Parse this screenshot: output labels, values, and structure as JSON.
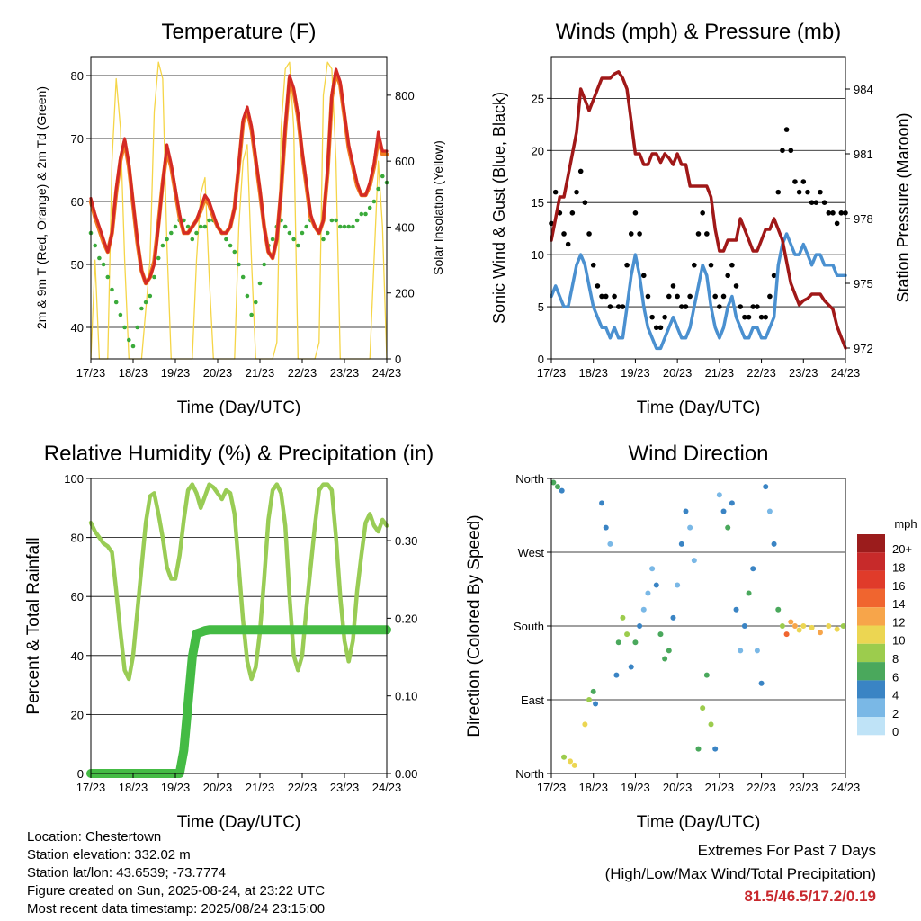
{
  "x_ticks": [
    "17/23",
    "18/23",
    "19/23",
    "20/23",
    "21/23",
    "22/23",
    "23/23",
    "24/23"
  ],
  "xlabel": "Time (Day/UTC)",
  "colors": {
    "temp_red": "#d42a25",
    "temp_orange": "#f07a20",
    "dewpoint_green": "#3aaa3a",
    "insolation": "#f5d547",
    "wind_blue": "#4a90d0",
    "gust_black": "#000000",
    "pressure_maroon": "#a01818",
    "rh_green": "#99cc55",
    "rain_green": "#44bb44",
    "extremes_red": "#c8282d"
  },
  "footer": {
    "location": "Location: Chestertown",
    "elevation": "Station elevation: 332.02 m",
    "latlon": "Station lat/lon: 43.6539; -73.7774",
    "created": "Figure created on Sun, 2025-08-24, at 23:22 UTC",
    "recent": "Most recent data timestamp: 2025/08/24 23:15:00"
  },
  "extremes": {
    "title": "Extremes For Past 7 Days",
    "subtitle": "(High/Low/Max Wind/Total Precipitation)",
    "values": "81.5/46.5/17.2/0.19"
  },
  "chart_data": [
    {
      "type": "line",
      "title": "Temperature (F)",
      "xlabel": "Time (Day/UTC)",
      "ylabel": "2m & 9m T (Red, Orange) & 2m Td (Green)",
      "ylabel_right": "Solar Insolation (Yellow)",
      "ylim": [
        35,
        83
      ],
      "ylim_right": [
        0,
        917
      ],
      "yticks": [
        40,
        50,
        60,
        70,
        80
      ],
      "yticks_right": [
        0,
        200,
        400,
        600,
        800
      ],
      "x": [
        0,
        0.1,
        0.2,
        0.3,
        0.4,
        0.5,
        0.6,
        0.7,
        0.8,
        0.9,
        1,
        1.1,
        1.2,
        1.3,
        1.4,
        1.5,
        1.6,
        1.7,
        1.8,
        1.9,
        2,
        2.1,
        2.2,
        2.3,
        2.4,
        2.5,
        2.6,
        2.7,
        2.8,
        2.9,
        3,
        3.1,
        3.2,
        3.3,
        3.4,
        3.5,
        3.6,
        3.7,
        3.8,
        3.9,
        4,
        4.1,
        4.2,
        4.3,
        4.4,
        4.5,
        4.6,
        4.7,
        4.8,
        4.9,
        5,
        5.1,
        5.2,
        5.3,
        5.4,
        5.5,
        5.6,
        5.7,
        5.8,
        5.9,
        6,
        6.1,
        6.2,
        6.3,
        6.4,
        6.5,
        6.6,
        6.7,
        6.8,
        6.9,
        7
      ],
      "series": [
        {
          "values": [
            60.5,
            58,
            56,
            54,
            52,
            55,
            62,
            67,
            70,
            66,
            60,
            54,
            49,
            47,
            48,
            50,
            56,
            63,
            69,
            66,
            62,
            58,
            55,
            55,
            56,
            57,
            59,
            61,
            60,
            58,
            56,
            55,
            55,
            56,
            59,
            66,
            73,
            75,
            72,
            67,
            62,
            56,
            52,
            51,
            54,
            62,
            72,
            80,
            78,
            74,
            68,
            63,
            58,
            56,
            55,
            57,
            65,
            77,
            81,
            79,
            74,
            69,
            66,
            63,
            61,
            61,
            63,
            66,
            71,
            68,
            68
          ]
        },
        {
          "values": [
            60,
            57.5,
            55.5,
            53.5,
            52,
            55,
            61.5,
            66.5,
            69.5,
            65.5,
            59.5,
            53.5,
            49,
            47,
            48,
            50.5,
            56.5,
            63,
            68,
            65.5,
            61.5,
            57.5,
            55,
            55,
            56,
            57,
            58.5,
            60.5,
            59.5,
            57.5,
            56,
            55,
            55,
            56,
            59,
            65.5,
            72.5,
            74.5,
            71.5,
            66.5,
            61.5,
            56,
            52,
            51,
            54,
            61.5,
            71.5,
            79.5,
            77.5,
            73.5,
            67.5,
            62.5,
            57.5,
            56,
            55,
            57,
            64.5,
            76.5,
            80.5,
            78.5,
            73.5,
            68.5,
            65.5,
            62.5,
            61,
            61,
            62.5,
            65.5,
            70,
            67.5,
            67.5
          ]
        },
        {
          "values": [
            55,
            53,
            51,
            50,
            48,
            46,
            44,
            42,
            40,
            38,
            37,
            40,
            43,
            44,
            45,
            48,
            51,
            53,
            54,
            55,
            56,
            57,
            57,
            56,
            54,
            55,
            56,
            56,
            57,
            57,
            56,
            55,
            54,
            53,
            52,
            50,
            48,
            45,
            42,
            44,
            47,
            50,
            53,
            54,
            56,
            57,
            56,
            55,
            54,
            53,
            55,
            56,
            57,
            56,
            55,
            54,
            55,
            57,
            57,
            56,
            56,
            56,
            56,
            57,
            58,
            58,
            59,
            60,
            62,
            64,
            63
          ]
        },
        {
          "values": [
            0,
            300,
            0,
            0,
            0,
            600,
            850,
            700,
            300,
            0,
            0,
            0,
            0,
            150,
            300,
            750,
            900,
            850,
            350,
            0,
            0,
            0,
            0,
            0,
            0,
            300,
            500,
            550,
            250,
            0,
            0,
            0,
            0,
            0,
            0,
            400,
            600,
            650,
            300,
            0,
            0,
            0,
            0,
            0,
            50,
            700,
            880,
            900,
            700,
            0,
            0,
            0,
            0,
            0,
            50,
            800,
            900,
            880,
            600,
            0,
            0,
            0,
            0,
            0,
            0,
            0,
            0,
            300,
            600,
            400,
            0
          ]
        }
      ]
    },
    {
      "type": "line",
      "title": "Winds (mph) & Pressure (mb)",
      "xlabel": "Time (Day/UTC)",
      "ylabel": "Sonic Wind & Gust (Blue, Black)",
      "ylabel_right": "Station Pressure (Maroon)",
      "ylim": [
        0,
        29
      ],
      "ylim_right": [
        971.5,
        985.5
      ],
      "yticks": [
        0,
        5,
        10,
        15,
        20,
        25
      ],
      "yticks_right": [
        972,
        975,
        978,
        981,
        984
      ],
      "x": [
        0,
        0.1,
        0.2,
        0.3,
        0.4,
        0.5,
        0.6,
        0.7,
        0.8,
        0.9,
        1,
        1.1,
        1.2,
        1.3,
        1.4,
        1.5,
        1.6,
        1.7,
        1.8,
        1.9,
        2,
        2.1,
        2.2,
        2.3,
        2.4,
        2.5,
        2.6,
        2.7,
        2.8,
        2.9,
        3,
        3.1,
        3.2,
        3.3,
        3.4,
        3.5,
        3.6,
        3.7,
        3.8,
        3.9,
        4,
        4.1,
        4.2,
        4.3,
        4.4,
        4.5,
        4.6,
        4.7,
        4.8,
        4.9,
        5,
        5.1,
        5.2,
        5.3,
        5.4,
        5.5,
        5.6,
        5.7,
        5.8,
        5.9,
        6,
        6.1,
        6.2,
        6.3,
        6.4,
        6.5,
        6.6,
        6.7,
        6.8,
        6.9,
        7
      ],
      "series": [
        {
          "values": [
            6,
            7,
            6,
            5,
            5,
            7,
            9,
            10,
            9,
            7,
            5,
            4,
            3,
            3,
            2,
            3,
            2,
            2,
            5,
            8,
            10,
            8,
            5,
            3,
            2,
            1,
            1,
            2,
            3,
            4,
            3,
            2,
            2,
            3,
            5,
            7,
            9,
            8,
            5,
            3,
            2,
            3,
            5,
            6,
            4,
            3,
            2,
            2,
            3,
            3,
            2,
            2,
            3,
            4,
            9,
            11,
            12,
            11,
            10,
            10,
            11,
            10,
            9,
            10,
            10,
            9,
            9,
            9,
            8,
            8,
            8
          ]
        },
        {
          "values": [
            13,
            16,
            14,
            12,
            11,
            14,
            16,
            18,
            15,
            12,
            9,
            7,
            6,
            6,
            5,
            6,
            5,
            5,
            9,
            12,
            14,
            12,
            8,
            6,
            4,
            3,
            3,
            4,
            6,
            7,
            6,
            5,
            5,
            6,
            9,
            12,
            14,
            12,
            9,
            6,
            5,
            6,
            8,
            9,
            7,
            5,
            4,
            4,
            5,
            5,
            4,
            4,
            6,
            8,
            16,
            20,
            22,
            20,
            17,
            16,
            17,
            16,
            15,
            15,
            16,
            15,
            14,
            14,
            13,
            14,
            14
          ]
        },
        {
          "values": [
            977,
            978,
            979,
            979,
            980,
            981,
            982,
            984,
            983.5,
            983,
            983.5,
            984,
            984.5,
            984.5,
            984.5,
            984.7,
            984.8,
            984.5,
            984,
            982.5,
            981,
            981,
            980.5,
            980.5,
            981,
            981,
            980.6,
            981,
            980.8,
            980.5,
            981,
            980.5,
            980.5,
            979.5,
            979.5,
            979.5,
            979.5,
            979.5,
            979,
            977.5,
            976.5,
            976.5,
            977,
            977,
            977,
            978,
            977.5,
            977,
            976.5,
            976.5,
            977,
            977.5,
            977.5,
            978,
            977.5,
            977,
            976,
            975,
            974.5,
            974,
            974.2,
            974.3,
            974.5,
            974.5,
            974.5,
            974.2,
            974,
            973.8,
            973,
            972.5,
            972
          ]
        }
      ]
    },
    {
      "type": "line",
      "title": "Relative Humidity (%) & Precipitation (in)",
      "xlabel": "Time (Day/UTC)",
      "ylabel": "Percent & Total Rainfall",
      "ylim": [
        0,
        100
      ],
      "ylim_right": [
        0,
        0.38
      ],
      "yticks": [
        0,
        20,
        40,
        60,
        80,
        100
      ],
      "yticks_right": [
        "0.00",
        "0.10",
        "0.20",
        "0.30"
      ],
      "x": [
        0,
        0.1,
        0.2,
        0.3,
        0.4,
        0.5,
        0.6,
        0.7,
        0.8,
        0.9,
        1,
        1.1,
        1.2,
        1.3,
        1.4,
        1.5,
        1.6,
        1.7,
        1.8,
        1.9,
        2,
        2.1,
        2.2,
        2.3,
        2.4,
        2.5,
        2.6,
        2.7,
        2.8,
        2.9,
        3,
        3.1,
        3.2,
        3.3,
        3.4,
        3.5,
        3.6,
        3.7,
        3.8,
        3.9,
        4,
        4.1,
        4.2,
        4.3,
        4.4,
        4.5,
        4.6,
        4.7,
        4.8,
        4.9,
        5,
        5.1,
        5.2,
        5.3,
        5.4,
        5.5,
        5.6,
        5.7,
        5.8,
        5.9,
        6,
        6.1,
        6.2,
        6.3,
        6.4,
        6.5,
        6.6,
        6.7,
        6.8,
        6.9,
        7
      ],
      "series": [
        {
          "values": [
            85,
            82,
            80,
            78,
            77,
            75,
            62,
            48,
            35,
            32,
            40,
            55,
            70,
            85,
            94,
            95,
            88,
            80,
            70,
            66,
            66,
            74,
            86,
            96,
            98,
            95,
            90,
            94,
            98,
            97,
            95,
            93,
            96,
            95,
            88,
            70,
            52,
            38,
            32,
            36,
            48,
            66,
            86,
            96,
            98,
            95,
            84,
            60,
            40,
            35,
            40,
            56,
            70,
            84,
            96,
            98,
            98,
            96,
            80,
            60,
            45,
            38,
            45,
            62,
            74,
            85,
            88,
            84,
            82,
            86,
            84
          ]
        },
        {
          "values": [
            0,
            0,
            0,
            0,
            0,
            0,
            0,
            0,
            0,
            0,
            0,
            0,
            0,
            0,
            0,
            0,
            0,
            0,
            0,
            0,
            0,
            0,
            0.03,
            0.09,
            0.15,
            0.18,
            0.182,
            0.184,
            0.185,
            0.185,
            0.185,
            0.185,
            0.185,
            0.185,
            0.185,
            0.185,
            0.185,
            0.185,
            0.185,
            0.185,
            0.185,
            0.185,
            0.185,
            0.185,
            0.185,
            0.185,
            0.185,
            0.185,
            0.185,
            0.185,
            0.185,
            0.185,
            0.185,
            0.185,
            0.185,
            0.185,
            0.185,
            0.185,
            0.185,
            0.185,
            0.185,
            0.185,
            0.185,
            0.185,
            0.185,
            0.185,
            0.185,
            0.185,
            0.185,
            0.185,
            0.185
          ]
        }
      ]
    },
    {
      "type": "scatter",
      "title": "Wind Direction",
      "xlabel": "Time (Day/UTC)",
      "ylabel": "Direction (Colored By Speed)",
      "ylim": [
        0,
        360
      ],
      "yticks": [
        "North",
        "East",
        "South",
        "West",
        "North"
      ],
      "legend_title": "mph",
      "legend_labels": [
        "20+",
        "18",
        "16",
        "14",
        "12",
        "10",
        "8",
        "6",
        "4",
        "2",
        "0"
      ],
      "legend_colors": [
        "#9b1c1c",
        "#c72a2a",
        "#e03b2a",
        "#f0652f",
        "#f7a54a",
        "#ecd652",
        "#9ccc4d",
        "#4aa85c",
        "#3a84c4",
        "#7ab8e6",
        "#bfe3f7"
      ],
      "x": [
        0.05,
        0.15,
        0.25,
        0.3,
        0.45,
        0.55,
        0.8,
        0.9,
        1.0,
        1.05,
        1.2,
        1.3,
        1.4,
        1.55,
        1.6,
        1.7,
        1.8,
        1.9,
        2.0,
        2.1,
        2.2,
        2.3,
        2.4,
        2.5,
        2.6,
        2.7,
        2.8,
        2.9,
        3.0,
        3.1,
        3.2,
        3.3,
        3.4,
        3.5,
        3.6,
        3.7,
        3.8,
        3.9,
        4.0,
        4.1,
        4.2,
        4.3,
        4.4,
        4.5,
        4.6,
        4.7,
        4.8,
        4.9,
        5.0,
        5.1,
        5.2,
        5.3,
        5.4,
        5.5,
        5.6,
        5.7,
        5.8,
        5.9,
        6.0,
        6.2,
        6.4,
        6.6,
        6.8,
        6.95
      ],
      "y": [
        355,
        350,
        345,
        20,
        15,
        10,
        60,
        90,
        100,
        85,
        330,
        300,
        280,
        120,
        160,
        190,
        170,
        130,
        160,
        180,
        200,
        220,
        250,
        230,
        170,
        140,
        150,
        190,
        230,
        280,
        320,
        300,
        260,
        30,
        80,
        120,
        60,
        30,
        340,
        320,
        300,
        330,
        200,
        150,
        180,
        220,
        250,
        150,
        110,
        350,
        320,
        280,
        200,
        180,
        170,
        185,
        180,
        175,
        180,
        178,
        172,
        180,
        176,
        180
      ],
      "speed": [
        6,
        5,
        4,
        8,
        10,
        9,
        10,
        8,
        6,
        4,
        3,
        4,
        2,
        4,
        6,
        8,
        7,
        4,
        5,
        3,
        2,
        1,
        2,
        4,
        5,
        6,
        5,
        3,
        2,
        3,
        4,
        2,
        1,
        5,
        7,
        6,
        8,
        4,
        2,
        3,
        5,
        4,
        3,
        2,
        4,
        5,
        3,
        2,
        4,
        3,
        2,
        4,
        6,
        8,
        14,
        12,
        11,
        10,
        9,
        10,
        11,
        9,
        10,
        8
      ]
    }
  ]
}
